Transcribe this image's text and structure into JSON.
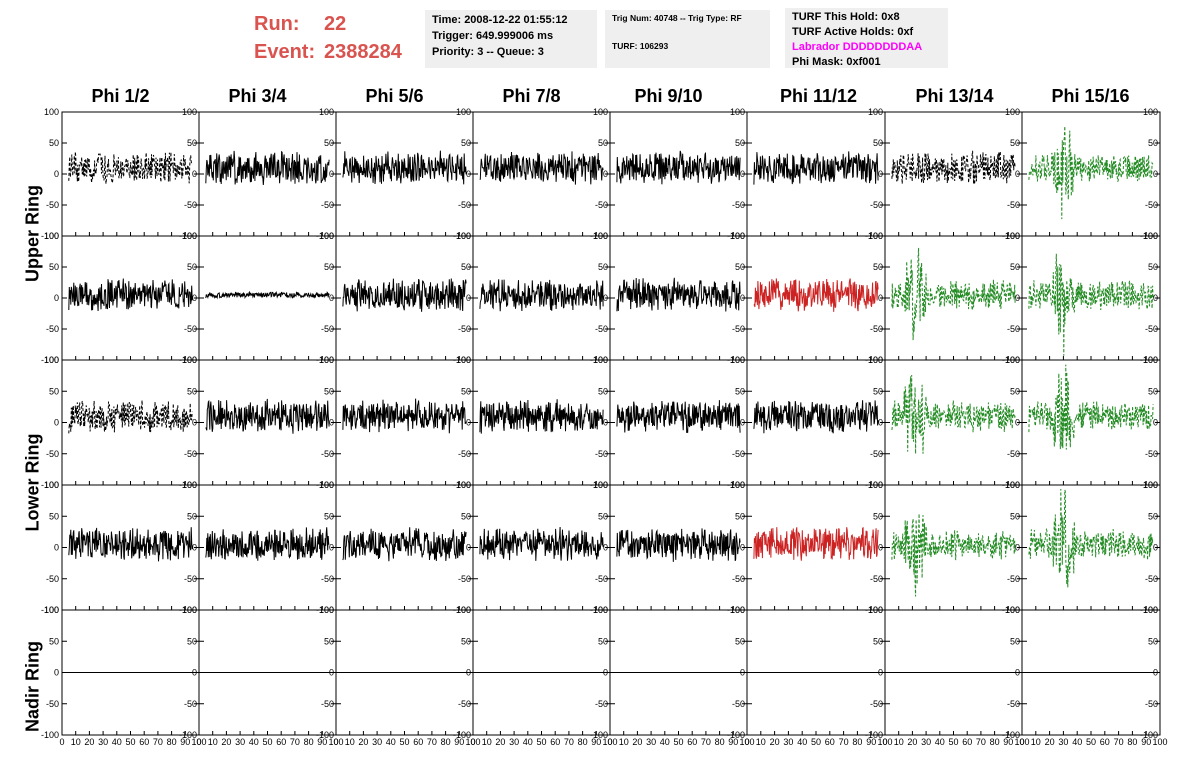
{
  "header": {
    "run_label": "Run:",
    "run_value": "22",
    "event_label": "Event:",
    "event_value": "2388284",
    "accent_color": "#d9534f"
  },
  "time_box": {
    "time": "Time: 2008-12-22 01:55:12",
    "trigger": "Trigger: 649.999006 ms",
    "priority": "Priority: 3 -- Queue: 3"
  },
  "trig_box": {
    "trig": "Trig Num: 40748 -- Trig Type: RF",
    "turf": "TURF: 106293"
  },
  "turf_box": {
    "this_hold": "TURF This Hold: 0x8",
    "active_holds": "TURF Active Holds: 0xf",
    "labrador": "Labrador DDDDDDDDAA",
    "labrador_color": "#ff00ff",
    "phi_mask": "Phi Mask: 0xf001"
  },
  "columns": [
    "Phi 1/2",
    "Phi 3/4",
    "Phi 5/6",
    "Phi 7/8",
    "Phi 9/10",
    "Phi 11/12",
    "Phi 13/14",
    "Phi 15/16"
  ],
  "ring_labels": [
    "Upper Ring",
    "Lower Ring",
    "Nadir Ring"
  ],
  "axes": {
    "y_ticks": [
      "100",
      "50",
      "0",
      "-50",
      "-100"
    ],
    "y_values": [
      100,
      50,
      0,
      -50,
      -100
    ],
    "x_ticks": [
      "0",
      "10",
      "20",
      "30",
      "40",
      "50",
      "60",
      "70",
      "80",
      "90",
      "100"
    ],
    "x_values": [
      0,
      10,
      20,
      30,
      40,
      50,
      60,
      70,
      80,
      90,
      100
    ]
  },
  "chart_data": {
    "type": "line",
    "x_range": [
      0,
      100
    ],
    "y_range": [
      -100,
      100
    ],
    "colors": {
      "default": "#000000",
      "red": "#cc2222",
      "green": "#228b22"
    },
    "panels": [
      [
        "black-dashed",
        "black",
        "black",
        "black",
        "black",
        "black",
        "black-dashed",
        "green-dashed"
      ],
      [
        "black",
        "black-flat",
        "black",
        "black",
        "black",
        "red",
        "green-dashed",
        "green-dashed"
      ],
      [
        "black-dashed",
        "black",
        "black",
        "black",
        "black",
        "black",
        "green-dashed",
        "green-dashed"
      ],
      [
        "black",
        "black",
        "black",
        "black",
        "black",
        "red",
        "green-dashed",
        "green-dashed"
      ],
      [
        "flat",
        "flat",
        "flat",
        "flat",
        "flat",
        "flat",
        "flat",
        "flat"
      ]
    ]
  }
}
